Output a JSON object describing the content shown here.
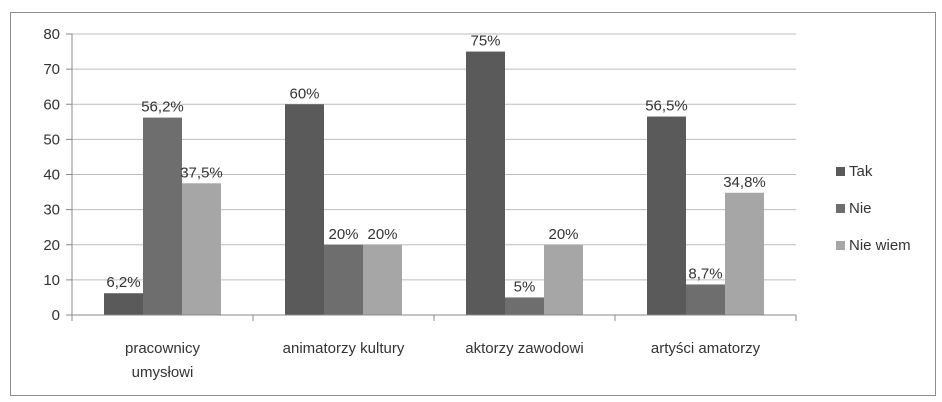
{
  "chart_data": {
    "type": "bar",
    "categories": [
      [
        "pracownicy",
        "umysłowi"
      ],
      [
        "animatorzy kultury"
      ],
      [
        "aktorzy zawodowi"
      ],
      [
        "artyści amatorzy"
      ]
    ],
    "series": [
      {
        "name": "Tak",
        "color": "#5a5a5a",
        "values": [
          6.2,
          60,
          75,
          56.5
        ],
        "labels": [
          "6,2%",
          "60%",
          "75%",
          "56,5%"
        ]
      },
      {
        "name": "Nie",
        "color": "#6e6e6e",
        "values": [
          56.2,
          20,
          5,
          8.7
        ],
        "labels": [
          "56,2%",
          "20%",
          "5%",
          "8,7%"
        ]
      },
      {
        "name": "Nie wiem",
        "color": "#a6a6a6",
        "values": [
          37.5,
          20,
          20,
          34.8
        ],
        "labels": [
          "37,5%",
          "20%",
          "20%",
          "34,8%"
        ]
      }
    ],
    "yticks": [
      0,
      10,
      20,
      30,
      40,
      50,
      60,
      70,
      80
    ],
    "ylim": [
      0,
      80
    ],
    "grid": true,
    "legend": "right"
  }
}
